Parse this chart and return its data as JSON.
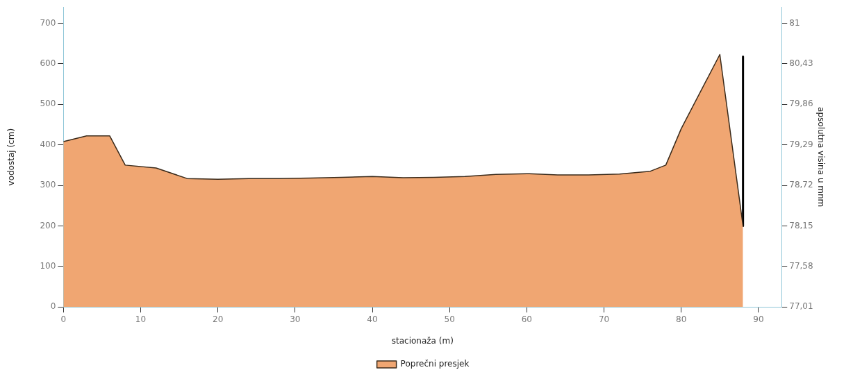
{
  "chart_data": {
    "type": "area",
    "xlabel": "stacionaža (m)",
    "ylabel": "vodostaj (cm)",
    "y2label": "apsolutna visina u mnm",
    "xlim": [
      0,
      93
    ],
    "xticks": [
      0,
      10,
      20,
      30,
      40,
      50,
      60,
      70,
      80,
      90
    ],
    "ylim": [
      0,
      740
    ],
    "yticks": [
      0,
      100,
      200,
      300,
      400,
      500,
      600,
      700
    ],
    "y2lim": [
      77.01,
      81.228
    ],
    "y2ticks": [
      {
        "value": 77.01,
        "label": "77,01"
      },
      {
        "value": 77.58,
        "label": "77,58"
      },
      {
        "value": 78.15,
        "label": "78,15"
      },
      {
        "value": 78.72,
        "label": "78,72"
      },
      {
        "value": 79.29,
        "label": "79,29"
      },
      {
        "value": 79.86,
        "label": "79,86"
      },
      {
        "value": 80.43,
        "label": "80,43"
      },
      81
    ],
    "grid": false,
    "legend": "bottom",
    "marker": "none",
    "series": [
      {
        "name": "Poprečni presjek",
        "color": "#f0a672",
        "x": [
          0,
          3,
          6,
          8,
          12,
          16,
          20,
          24,
          28,
          32,
          36,
          40,
          44,
          48,
          52,
          56,
          60,
          64,
          68,
          72,
          76,
          78,
          80,
          85,
          88
        ],
        "values": [
          408,
          422,
          422,
          350,
          343,
          317,
          315,
          317,
          317,
          318,
          320,
          322,
          319,
          320,
          322,
          327,
          329,
          326,
          326,
          328,
          335,
          350,
          440,
          623,
          200
        ]
      },
      {
        "type": "line",
        "color": "#000000",
        "x": [
          88,
          88
        ],
        "values": [
          618,
          200
        ]
      }
    ]
  }
}
